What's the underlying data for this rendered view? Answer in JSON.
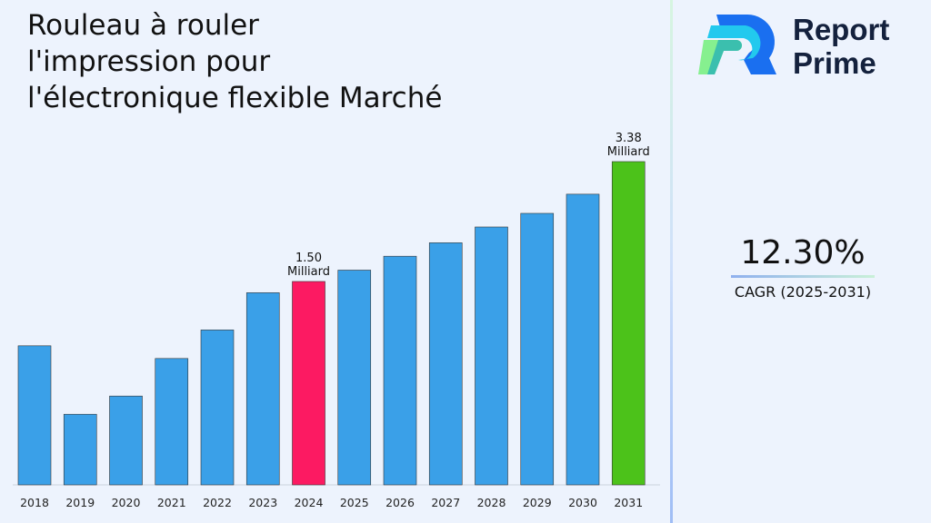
{
  "title": [
    "Rouleau à rouler",
    "l'impression pour",
    "l'électronique flexible Marché"
  ],
  "logo": {
    "line1": "Report",
    "line2": "Prime"
  },
  "cagr": {
    "value": "12.30%",
    "label": "CAGR (2025-2031)"
  },
  "colors": {
    "bar": "#3aa0e8",
    "highlight_2024": "#fc1a62",
    "highlight_2031": "#4cc21a"
  },
  "chart_data": {
    "type": "bar",
    "title": "Rouleau à rouler l'impression pour l'électronique flexible Marché",
    "categories": [
      "2018",
      "2019",
      "2020",
      "2021",
      "2022",
      "2023",
      "2024",
      "2025",
      "2026",
      "2027",
      "2028",
      "2029",
      "2030",
      "2031"
    ],
    "values": [
      0.97,
      0.61,
      0.69,
      0.89,
      1.08,
      1.39,
      1.5,
      1.62,
      1.78,
      1.95,
      2.17,
      2.38,
      2.71,
      3.38
    ],
    "data_labels": {
      "2024": [
        "1.50",
        "Milliard"
      ],
      "2031": [
        "3.38",
        "Milliard"
      ]
    },
    "xlabel": "",
    "ylabel": "",
    "grid": false
  }
}
